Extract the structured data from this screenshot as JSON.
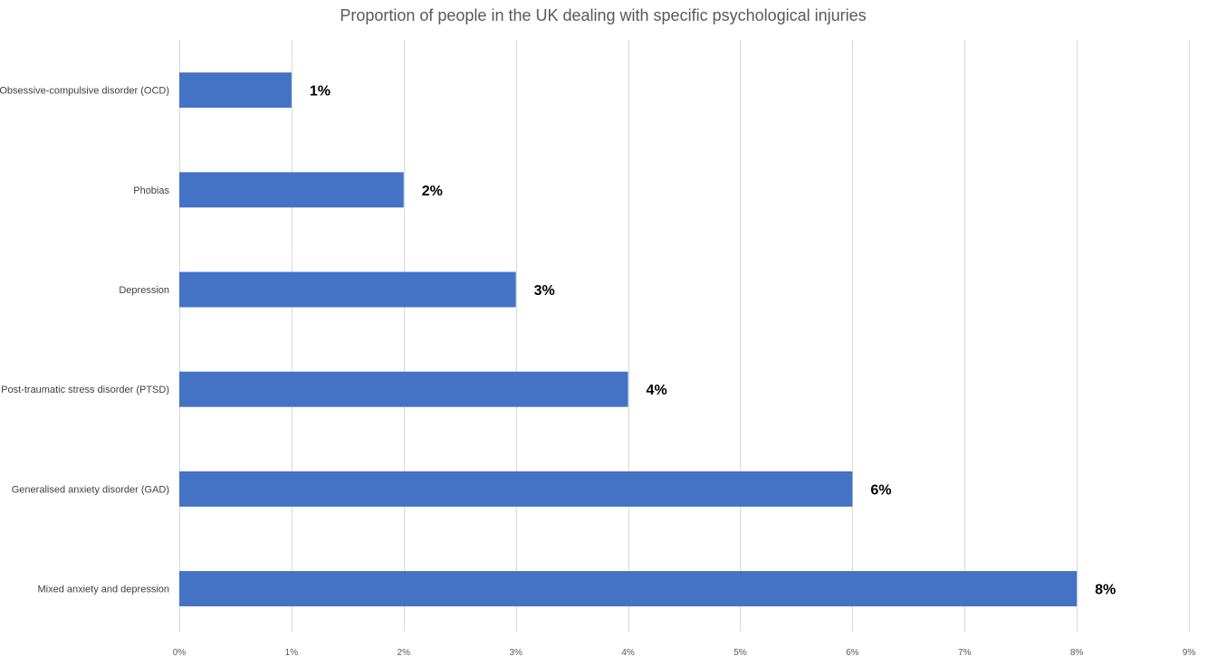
{
  "chart_data": {
    "type": "bar",
    "orientation": "horizontal",
    "title": "Proportion of people in the UK dealing with specific psychological injuries",
    "categories": [
      "Obsessive-compulsive disorder (OCD)",
      "Phobias",
      "Depression",
      "Post-traumatic stress disorder (PTSD)",
      "Generalised anxiety disorder (GAD)",
      "Mixed anxiety and depression"
    ],
    "values": [
      1,
      2,
      3,
      4,
      6,
      8
    ],
    "data_labels": [
      "1%",
      "2%",
      "3%",
      "4%",
      "6%",
      "8%"
    ],
    "xlim": [
      0,
      9
    ],
    "x_ticks": [
      0,
      1,
      2,
      3,
      4,
      5,
      6,
      7,
      8,
      9
    ],
    "x_tick_labels": [
      "0%",
      "1%",
      "2%",
      "3%",
      "4%",
      "5%",
      "6%",
      "7%",
      "8%",
      "9%"
    ],
    "grid": "vertical",
    "legend": "none",
    "bar_color": "#4472C4",
    "grid_color": "#D9D9D9"
  }
}
